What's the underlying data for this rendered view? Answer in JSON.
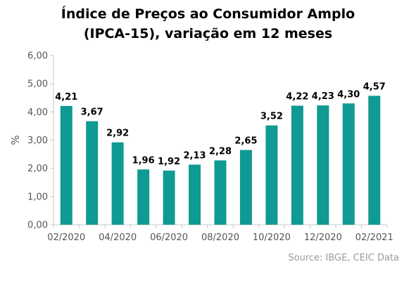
{
  "chart_data": {
    "type": "bar",
    "title_line1": "Índice de Preços ao Consumidor Amplo",
    "title_line2": "(IPCA-15), variação em 12 meses",
    "ylabel": "%",
    "xlabel": "",
    "categories": [
      "02/2020",
      "03/2020",
      "04/2020",
      "05/2020",
      "06/2020",
      "07/2020",
      "08/2020",
      "09/2020",
      "10/2020",
      "11/2020",
      "12/2020",
      "01/2021",
      "02/2021"
    ],
    "x_tick_labels": [
      "02/2020",
      "",
      "04/2020",
      "",
      "06/2020",
      "",
      "08/2020",
      "",
      "10/2020",
      "",
      "12/2020",
      "",
      "02/2021"
    ],
    "values": [
      4.21,
      3.67,
      2.92,
      1.96,
      1.92,
      2.13,
      2.28,
      2.65,
      3.52,
      4.22,
      4.23,
      4.3,
      4.57
    ],
    "value_labels": [
      "4,21",
      "3,67",
      "2,92",
      "1,96",
      "1,92",
      "2,13",
      "2,28",
      "2,65",
      "3,52",
      "4,22",
      "4,23",
      "4,30",
      "4,57"
    ],
    "ylim": [
      0,
      6
    ],
    "y_ticks": [
      0,
      1,
      2,
      3,
      4,
      5,
      6
    ],
    "y_tick_labels": [
      "0,00",
      "1,00",
      "2,00",
      "3,00",
      "4,00",
      "5,00",
      "6,00"
    ],
    "grid": false,
    "legend": "none",
    "bar_color": "#0f9a93",
    "source": "Source: IBGE, CEIC Data"
  }
}
